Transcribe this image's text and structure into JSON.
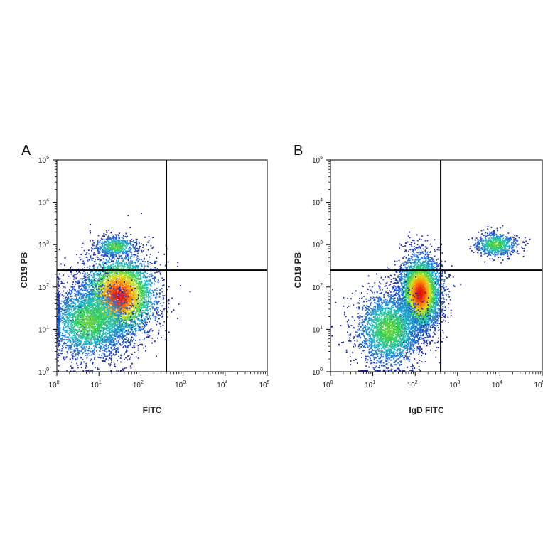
{
  "chart_data": [
    {
      "panel_label": "A",
      "type": "scatter",
      "plot_style": "pseudocolor density dot plot (flow cytometry)",
      "xlabel": "FITC",
      "ylabel": "CD19 PB",
      "x_scale": "log10",
      "y_scale": "log10",
      "xlim": [
        0,
        5
      ],
      "ylim": [
        0,
        5
      ],
      "x_ticks": [
        0,
        1,
        2,
        3,
        4,
        5
      ],
      "y_ticks": [
        0,
        1,
        2,
        3,
        4,
        5
      ],
      "tick_base": "10",
      "quadrant_gate": {
        "x": 400,
        "y": 250
      },
      "populations": [
        {
          "x": 30,
          "y": 60,
          "share": 0.8,
          "spread_x": 0.45,
          "spread_y": 0.5,
          "peak": true
        },
        {
          "x": 6,
          "y": 15,
          "share": 0.5,
          "spread_x": 0.5,
          "spread_y": 0.45
        },
        {
          "x": 25,
          "y": 900,
          "share": 0.1,
          "spread_x": 0.25,
          "spread_y": 0.12
        }
      ]
    },
    {
      "panel_label": "B",
      "type": "scatter",
      "plot_style": "pseudocolor density dot plot (flow cytometry)",
      "xlabel": "IgD FITC",
      "ylabel": "CD19 PB",
      "x_scale": "log10",
      "y_scale": "log10",
      "xlim": [
        0,
        5
      ],
      "ylim": [
        0,
        5
      ],
      "x_ticks": [
        0,
        1,
        2,
        3,
        4,
        5
      ],
      "y_ticks": [
        0,
        1,
        2,
        3,
        4,
        5
      ],
      "tick_base": "10",
      "quadrant_gate": {
        "x": 400,
        "y": 250
      },
      "populations": [
        {
          "x": 130,
          "y": 70,
          "share": 0.8,
          "spread_x": 0.25,
          "spread_y": 0.45,
          "peak": true
        },
        {
          "x": 25,
          "y": 10,
          "share": 0.5,
          "spread_x": 0.4,
          "spread_y": 0.45
        },
        {
          "x": 8000,
          "y": 1000,
          "share": 0.13,
          "spread_x": 0.25,
          "spread_y": 0.14
        }
      ]
    }
  ],
  "colors": {
    "density_scale": [
      "#1a1aa8",
      "#1f6fe0",
      "#22c0c0",
      "#3ad04a",
      "#d8e020",
      "#ff8a00",
      "#e01010"
    ],
    "gate_line": "#000000",
    "axis": "#000000"
  }
}
